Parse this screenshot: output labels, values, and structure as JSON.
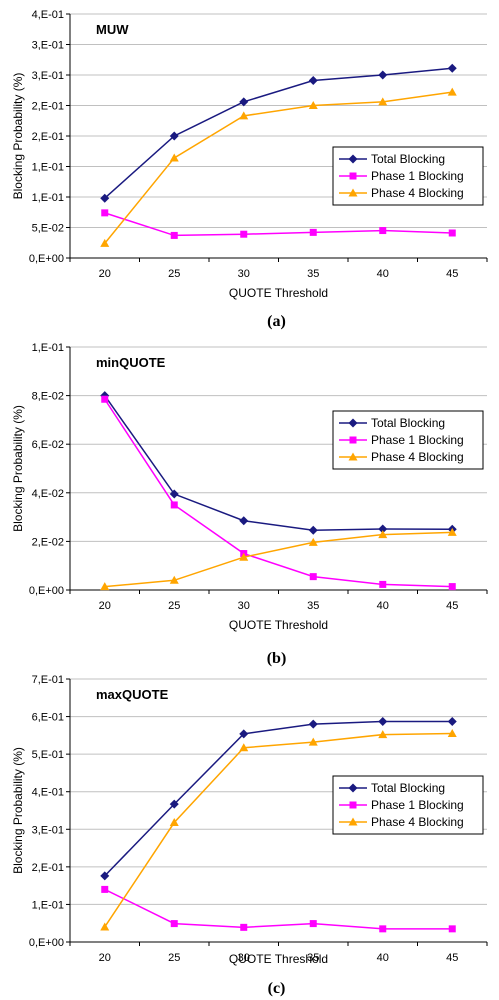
{
  "colors": {
    "total": "#1a1a80",
    "phase1": "#ff00ff",
    "phase4": "#ffa500",
    "grid": "#c0c0c0"
  },
  "chart_data": [
    {
      "type": "line",
      "title": "MUW",
      "caption": "(a)",
      "xlabel": "QUOTE Threshold",
      "ylabel": "Blocking Probability (%)",
      "categories": [
        "20",
        "25",
        "30",
        "35",
        "40",
        "45"
      ],
      "ylim": [
        0,
        0.4
      ],
      "yticks": [
        0,
        0.05,
        0.1,
        0.15,
        0.2,
        0.25,
        0.3,
        0.35,
        0.4
      ],
      "ytick_labels": [
        "0,E+00",
        "5,E-02",
        "1,E-01",
        "1,E-01",
        "2,E-01",
        "2,E-01",
        "3,E-01",
        "3,E-01",
        "4,E-01"
      ],
      "grid": "horizontal",
      "legend_placement": "right",
      "series": [
        {
          "name": "Total Blocking",
          "marker": "diamond",
          "values": [
            0.098,
            0.2,
            0.256,
            0.291,
            0.3,
            0.311
          ]
        },
        {
          "name": "Phase 1 Blocking",
          "marker": "square",
          "values": [
            0.074,
            0.037,
            0.039,
            0.042,
            0.045,
            0.041
          ]
        },
        {
          "name": "Phase 4 Blocking",
          "marker": "triangle",
          "values": [
            0.024,
            0.164,
            0.233,
            0.25,
            0.256,
            0.272
          ]
        }
      ]
    },
    {
      "type": "line",
      "title": "minQUOTE",
      "caption": "(b)",
      "xlabel": "QUOTE Threshold",
      "ylabel": "Blocking Probability (%)",
      "categories": [
        "20",
        "25",
        "30",
        "35",
        "40",
        "45"
      ],
      "ylim": [
        0,
        0.1
      ],
      "yticks": [
        0,
        0.02,
        0.04,
        0.06,
        0.08,
        0.1
      ],
      "ytick_labels": [
        "0,E+00",
        "2,E-02",
        "4,E-02",
        "6,E-02",
        "8,E-02",
        "1,E-01"
      ],
      "grid": "horizontal",
      "legend_placement": "right",
      "series": [
        {
          "name": "Total Blocking",
          "marker": "diamond",
          "values": [
            0.08,
            0.0395,
            0.0285,
            0.0246,
            0.0251,
            0.025
          ]
        },
        {
          "name": "Phase 1 Blocking",
          "marker": "square",
          "values": [
            0.0785,
            0.035,
            0.015,
            0.0055,
            0.0023,
            0.0014
          ]
        },
        {
          "name": "Phase 4 Blocking",
          "marker": "triangle",
          "values": [
            0.0014,
            0.004,
            0.0135,
            0.0196,
            0.0228,
            0.0237
          ]
        }
      ]
    },
    {
      "type": "line",
      "title": "maxQUOTE",
      "caption": "(c)",
      "xlabel": "QUOTE Threshold",
      "ylabel": "Blocking Probability (%)",
      "categories": [
        "20",
        "25",
        "30",
        "35",
        "40",
        "45"
      ],
      "ylim": [
        0,
        0.7
      ],
      "yticks": [
        0,
        0.1,
        0.2,
        0.3,
        0.4,
        0.5,
        0.6,
        0.7
      ],
      "ytick_labels": [
        "0,E+00",
        "1,E-01",
        "2,E-01",
        "3,E-01",
        "4,E-01",
        "5,E-01",
        "6,E-01",
        "7,E-01"
      ],
      "grid": "horizontal",
      "legend_placement": "right",
      "series": [
        {
          "name": "Total Blocking",
          "marker": "diamond",
          "values": [
            0.176,
            0.367,
            0.554,
            0.58,
            0.587,
            0.587
          ]
        },
        {
          "name": "Phase 1 Blocking",
          "marker": "square",
          "values": [
            0.14,
            0.049,
            0.039,
            0.049,
            0.035,
            0.035
          ]
        },
        {
          "name": "Phase 4 Blocking",
          "marker": "triangle",
          "values": [
            0.04,
            0.318,
            0.517,
            0.532,
            0.552,
            0.555
          ]
        }
      ]
    }
  ]
}
